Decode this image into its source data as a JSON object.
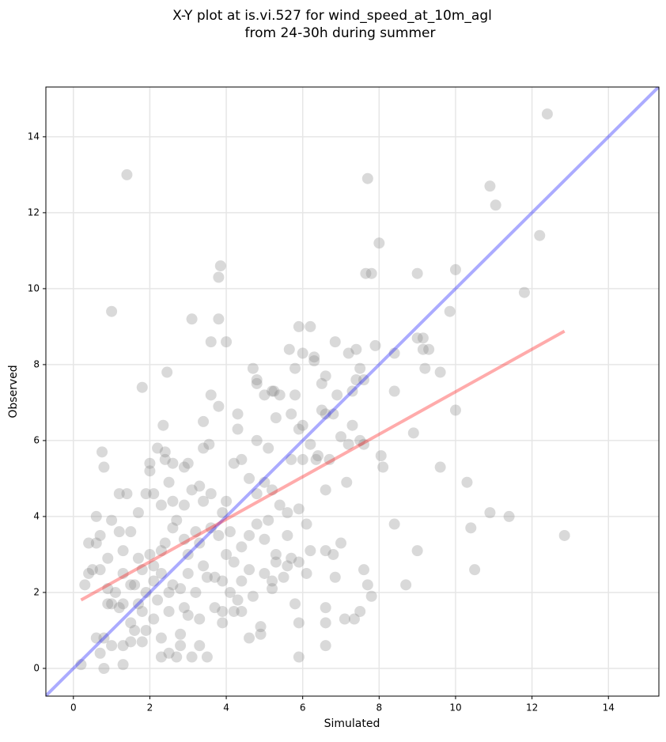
{
  "chart_data": {
    "type": "scatter",
    "title": "X-Y plot at is.vi.527 for wind_speed_at_10m_agl",
    "subtitle": "from 24-30h during summer",
    "x_label": "Simulated",
    "y_label": "Observed",
    "xlim": [
      -0.72,
      15.32
    ],
    "ylim": [
      -0.73,
      15.31
    ],
    "xticks": [
      0,
      2,
      4,
      6,
      8,
      10,
      12,
      14
    ],
    "yticks": [
      0,
      2,
      4,
      6,
      8,
      10,
      12,
      14
    ],
    "grid": true,
    "color": "#808080",
    "x": [
      1.4,
      12.4,
      7.7,
      10.9,
      11.05,
      12.2,
      8.0,
      3.85,
      3.8,
      7.65,
      7.8,
      9.0,
      10.0,
      1.0,
      11.8,
      9.85,
      3.1,
      3.8,
      4.0,
      3.6,
      5.9,
      6.2,
      9.0,
      9.15,
      9.3,
      9.15,
      6.0,
      6.3,
      6.3,
      6.85,
      7.2,
      7.4,
      5.65,
      7.9,
      8.4,
      4.7,
      5.8,
      2.45,
      1.8,
      4.8,
      4.8,
      5.25,
      5.2,
      5.4,
      5.0,
      5.8,
      6.5,
      6.6,
      6.9,
      7.4,
      7.5,
      7.6,
      7.3,
      8.4,
      9.2,
      9.6,
      3.6,
      3.8,
      4.3,
      5.3,
      5.7,
      6.0,
      6.5,
      6.6,
      7.0,
      7.3,
      7.5,
      7.2,
      6.8,
      8.9,
      10.0,
      2.35,
      4.3,
      3.4,
      3.55,
      3.4,
      4.8,
      5.1,
      5.9,
      6.2,
      6.35,
      6.4,
      6.7,
      6.0,
      5.7,
      6.6,
      7.15,
      7.6,
      8.05,
      8.1,
      9.6,
      10.3,
      10.9,
      11.4,
      10.4,
      12.85,
      10.5,
      9.0,
      8.4,
      8.7,
      7.6,
      7.7,
      7.8,
      7.5,
      7.35,
      7.1,
      6.6,
      6.6,
      6.6,
      5.9,
      5.9,
      5.8,
      5.2,
      4.9,
      4.9,
      4.6,
      4.2,
      4.4,
      3.9,
      3.9,
      3.7,
      3.5,
      3.3,
      3.1,
      2.7,
      2.5,
      2.3,
      2.8,
      2.8,
      2.3,
      1.8,
      1.5,
      1.3,
      1.3,
      0.8,
      0.2,
      0.7,
      0.6,
      0.8,
      1.0,
      1.2,
      1.3,
      1.0,
      0.9,
      1.5,
      1.6,
      1.8,
      1.9,
      2.1,
      2.2,
      2.5,
      2.6,
      2.9,
      3.0,
      3.3,
      3.5,
      3.7,
      3.9,
      4.1,
      4.3,
      4.4,
      4.6,
      4.7,
      5.0,
      5.2,
      5.3,
      5.5,
      5.6,
      5.7,
      5.9,
      6.1,
      6.2,
      6.6,
      6.8,
      6.85,
      7.0,
      0.75,
      0.8,
      1.2,
      1.4,
      1.7,
      1.9,
      2.0,
      2.0,
      2.2,
      2.4,
      2.4,
      2.6,
      2.9,
      3.0,
      2.1,
      2.3,
      2.5,
      2.6,
      2.9,
      3.1,
      3.3,
      3.4,
      3.6,
      3.9,
      4.0,
      4.2,
      4.4,
      4.6,
      4.8,
      5.0,
      5.2,
      5.4,
      5.6,
      5.9,
      6.1,
      0.6,
      0.4,
      0.6,
      0.7,
      0.9,
      1.0,
      1.2,
      1.3,
      1.5,
      1.6,
      1.7,
      1.8,
      2.0,
      2.1,
      2.3,
      2.4,
      2.6,
      2.7,
      2.9,
      3.0,
      3.2,
      3.3,
      3.4,
      3.6,
      3.8,
      4.0,
      4.1,
      4.2,
      4.4,
      4.6,
      4.8,
      5.0,
      5.1,
      5.3,
      5.6,
      0.3,
      0.4,
      0.5,
      0.7,
      0.9,
      1.1,
      1.3,
      1.5,
      1.7,
      1.9,
      2.1,
      2.3,
      2.5,
      2.8,
      3.0,
      3.2
    ],
    "y": [
      13.0,
      14.6,
      12.9,
      12.7,
      12.2,
      11.4,
      11.2,
      10.6,
      10.3,
      10.4,
      10.4,
      10.4,
      10.5,
      9.4,
      9.9,
      9.4,
      9.2,
      9.2,
      8.6,
      8.6,
      9.0,
      9.0,
      8.7,
      8.7,
      8.4,
      8.4,
      8.3,
      8.2,
      8.1,
      8.6,
      8.3,
      8.4,
      8.4,
      8.5,
      8.3,
      7.9,
      7.9,
      7.8,
      7.4,
      7.5,
      7.6,
      7.3,
      7.3,
      7.2,
      7.2,
      7.2,
      7.5,
      7.7,
      7.2,
      7.6,
      7.9,
      7.6,
      7.3,
      7.3,
      7.9,
      7.8,
      7.2,
      6.9,
      6.7,
      6.6,
      6.7,
      6.4,
      6.8,
      6.7,
      6.1,
      6.4,
      6.0,
      5.9,
      6.7,
      6.2,
      6.8,
      6.4,
      6.3,
      6.5,
      5.9,
      5.8,
      6.0,
      5.8,
      6.3,
      5.9,
      5.5,
      5.6,
      5.5,
      5.5,
      5.5,
      4.7,
      4.9,
      5.9,
      5.6,
      5.3,
      5.3,
      4.9,
      4.1,
      4.0,
      3.7,
      3.5,
      2.6,
      3.1,
      3.8,
      2.2,
      2.6,
      2.2,
      1.9,
      1.5,
      1.3,
      1.3,
      1.6,
      1.2,
      0.6,
      0.3,
      1.2,
      1.7,
      2.1,
      1.1,
      0.9,
      0.8,
      1.5,
      1.5,
      1.2,
      1.5,
      1.6,
      0.3,
      0.6,
      0.3,
      0.3,
      0.4,
      0.3,
      0.6,
      0.9,
      0.8,
      0.7,
      0.7,
      0.6,
      0.1,
      0.0,
      0.1,
      0.4,
      0.8,
      0.8,
      0.6,
      1.6,
      1.7,
      1.7,
      1.7,
      1.2,
      1.0,
      1.5,
      1.0,
      1.3,
      1.8,
      1.5,
      2.2,
      1.6,
      1.4,
      1.3,
      2.4,
      2.4,
      2.3,
      2.0,
      1.8,
      2.3,
      2.6,
      1.9,
      2.5,
      2.3,
      2.8,
      2.4,
      2.7,
      2.9,
      2.8,
      2.5,
      3.1,
      3.1,
      3.0,
      2.4,
      3.3,
      5.7,
      5.3,
      4.6,
      4.6,
      4.1,
      4.6,
      5.4,
      5.2,
      5.8,
      5.7,
      5.5,
      5.4,
      5.3,
      5.4,
      4.6,
      4.3,
      4.9,
      4.4,
      4.3,
      4.7,
      4.8,
      4.4,
      4.6,
      4.1,
      4.4,
      5.4,
      5.5,
      5.0,
      4.6,
      4.9,
      4.7,
      4.3,
      4.1,
      4.2,
      3.8,
      4.0,
      3.3,
      3.3,
      3.5,
      2.9,
      3.9,
      3.6,
      3.1,
      3.6,
      2.2,
      2.9,
      2.6,
      3.0,
      2.7,
      3.1,
      3.3,
      3.7,
      3.9,
      3.4,
      3.0,
      3.6,
      3.3,
      2.7,
      3.7,
      3.5,
      3.0,
      3.6,
      2.8,
      3.2,
      3.5,
      3.8,
      3.4,
      3.9,
      3.0,
      3.5,
      2.2,
      2.5,
      2.6,
      2.6,
      2.1,
      2.0,
      2.5,
      2.2,
      1.7,
      2.0,
      2.3,
      2.5,
      2.0,
      2.1,
      2.5,
      2.0
    ],
    "reference_lines": [
      {
        "color": "#0000ff",
        "x": [
          -0.72,
          15.32
        ],
        "y": [
          -0.72,
          15.32
        ]
      },
      {
        "color": "#ff0000",
        "x": [
          0.2,
          12.85
        ],
        "y": [
          1.8,
          8.88
        ]
      }
    ]
  }
}
